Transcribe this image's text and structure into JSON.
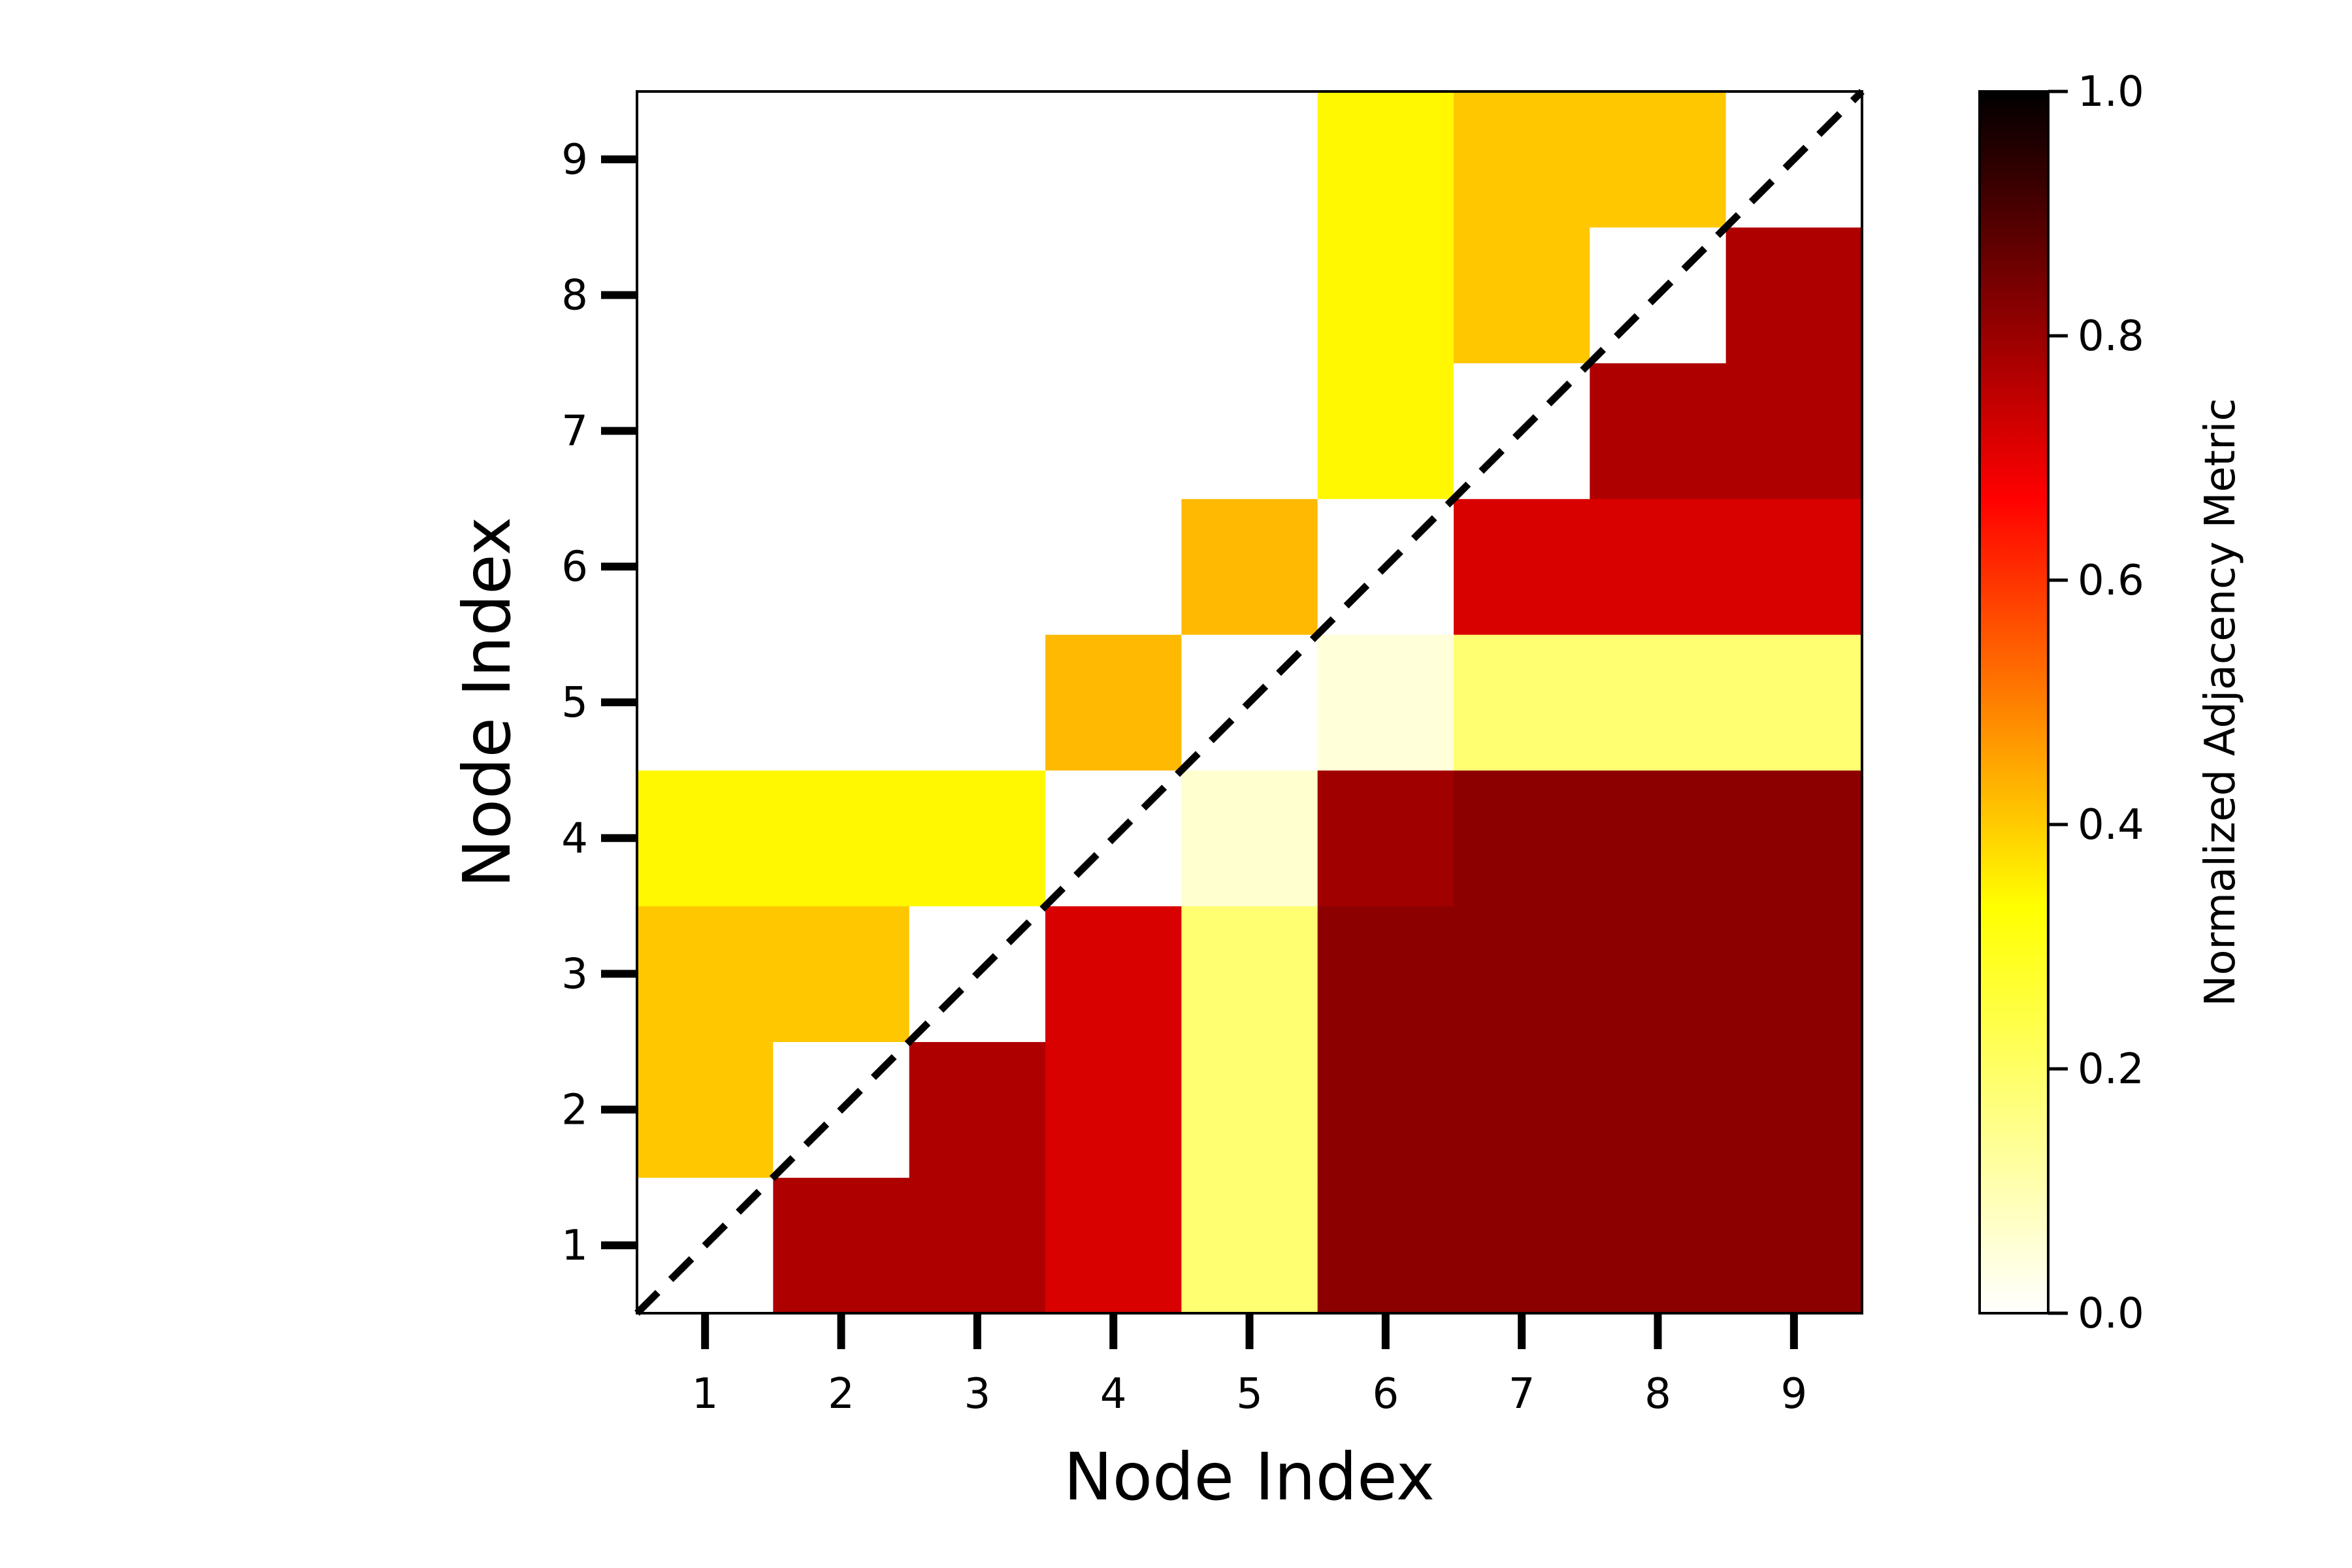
{
  "chart_data": {
    "type": "heatmap",
    "title": "",
    "xlabel": "Node Index",
    "ylabel": "Node Index",
    "x_categories": [
      "1",
      "2",
      "3",
      "4",
      "5",
      "6",
      "7",
      "8",
      "9"
    ],
    "y_categories": [
      "1",
      "2",
      "3",
      "4",
      "5",
      "6",
      "7",
      "8",
      "9"
    ],
    "note_rows": "values[r][c] = cell at y = r+1, x = c+1; null = blank (white) cell",
    "values": [
      [
        null,
        0.75,
        0.75,
        0.69,
        0.15,
        0.8,
        0.8,
        0.8,
        0.8
      ],
      [
        0.35,
        null,
        0.75,
        0.69,
        0.15,
        0.8,
        0.8,
        0.8,
        0.8
      ],
      [
        0.35,
        0.35,
        null,
        0.69,
        0.15,
        0.8,
        0.8,
        0.8,
        0.8
      ],
      [
        0.28,
        0.28,
        0.28,
        null,
        0.05,
        0.77,
        0.8,
        0.8,
        0.8
      ],
      [
        null,
        null,
        null,
        0.37,
        null,
        0.04,
        0.15,
        0.15,
        0.15
      ],
      [
        null,
        null,
        null,
        null,
        0.37,
        null,
        0.69,
        0.69,
        0.69
      ],
      [
        null,
        null,
        null,
        null,
        null,
        0.28,
        null,
        0.75,
        0.75
      ],
      [
        null,
        null,
        null,
        null,
        null,
        0.28,
        0.35,
        null,
        0.75
      ],
      [
        null,
        null,
        null,
        null,
        null,
        0.28,
        0.35,
        0.35,
        null
      ]
    ],
    "colormap": "hot_r",
    "diagonal_line": "dashed black",
    "colorbar": {
      "label": "Normalized Adjacency Metric",
      "range": [
        0.0,
        1.0
      ],
      "ticks": [
        "0.0",
        "0.2",
        "0.4",
        "0.6",
        "0.8",
        "1.0"
      ]
    }
  }
}
